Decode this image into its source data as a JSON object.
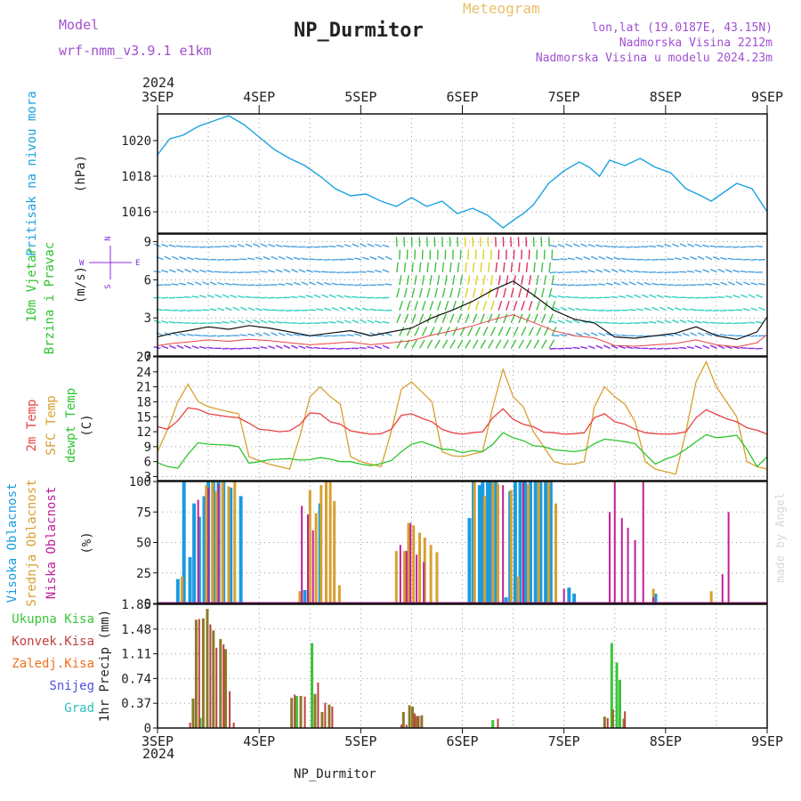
{
  "header": {
    "model_label": "Model",
    "model_name": "wrf-nmm_v3.9.1  e1km",
    "station": "NP_Durmitor",
    "product": "Meteogram",
    "coords": "lon,lat (19.0187E, 43.15N)",
    "elevation": "Nadmorska Visina 2212m",
    "model_elevation": "Nadmorska Visina u modelu 2024.23m",
    "year_top": "2024",
    "year_bottom": "2024",
    "footer_station": "NP_Durmitor",
    "watermark": "made by Angel"
  },
  "colors": {
    "pressure": "#1aa3e0",
    "t2m": "#e84343",
    "sfc": "#d8a030",
    "dewpt": "#2ec52e",
    "high_cloud": "#1a9be0",
    "mid_cloud": "#d8a030",
    "low_cloud": "#c0209a",
    "total_precip": "#3cc43c",
    "conv_precip": "#c04040",
    "strat_precip": "#8a7a2a",
    "snow": "#5050e0",
    "hail": "#30c0c0",
    "wind_calm": "#8a2be2",
    "wind_low": "#4aa0e0",
    "wind_mid": "#30d0c0",
    "wind_high": "#40c040",
    "wind_strong": "#e0d020",
    "wind_max": "#e03060"
  },
  "chart_data": [
    {
      "type": "line",
      "panel": "pressure",
      "ylabel": "Pritisak na nivou mora",
      "unit": "(hPa)",
      "yticks": [
        1016,
        1018,
        1020
      ],
      "ylim": [
        1014.8,
        1021.5
      ],
      "grid": true,
      "x_tick_labels": [
        "3SEP",
        "4SEP",
        "5SEP",
        "6SEP",
        "7SEP",
        "8SEP",
        "9SEP"
      ],
      "x_days": [
        0,
        6
      ],
      "x": [
        0,
        0.12,
        0.25,
        0.4,
        0.55,
        0.7,
        0.85,
        1.0,
        1.15,
        1.3,
        1.45,
        1.6,
        1.75,
        1.9,
        2.05,
        2.2,
        2.35,
        2.5,
        2.65,
        2.8,
        2.95,
        3.1,
        3.25,
        3.4,
        3.52,
        3.6,
        3.7,
        3.85,
        4.0,
        4.15,
        4.25,
        4.35,
        4.45,
        4.6,
        4.75,
        4.9,
        5.05,
        5.2,
        5.35,
        5.45,
        5.55,
        5.7,
        5.85,
        6.0
      ],
      "series": [
        {
          "name": "",
          "values": [
            1019.2,
            1020.1,
            1020.3,
            1020.8,
            1021.1,
            1021.4,
            1020.9,
            1020.2,
            1019.5,
            1019.0,
            1018.6,
            1018.0,
            1017.3,
            1016.9,
            1017.0,
            1016.6,
            1016.3,
            1016.8,
            1016.3,
            1016.6,
            1015.9,
            1016.2,
            1015.8,
            1015.1,
            1015.6,
            1015.9,
            1016.4,
            1017.6,
            1018.3,
            1018.8,
            1018.5,
            1018.0,
            1018.9,
            1018.6,
            1019.0,
            1018.5,
            1018.2,
            1017.3,
            1016.9,
            1016.6,
            1017.0,
            1017.6,
            1017.3,
            1016.0
          ]
        }
      ]
    },
    {
      "type": "line",
      "panel": "wind",
      "ylabel": "10m Vjetar Brzina i Pravac",
      "unit": "(m/s)",
      "direction_labels": {
        "north": "N",
        "south": "S",
        "east": "E",
        "west": "W"
      },
      "yticks": [
        0,
        3,
        6,
        9
      ],
      "ylim": [
        0,
        9.6
      ],
      "grid": true,
      "x": [
        0,
        0.15,
        0.3,
        0.5,
        0.7,
        0.9,
        1.1,
        1.3,
        1.5,
        1.7,
        1.9,
        2.1,
        2.3,
        2.5,
        2.7,
        2.9,
        3.1,
        3.3,
        3.5,
        3.7,
        3.9,
        4.1,
        4.3,
        4.5,
        4.7,
        4.9,
        5.1,
        5.3,
        5.5,
        5.7,
        5.9,
        6.0
      ],
      "series": [
        {
          "name": "",
          "values": [
            1.5,
            1.8,
            2.0,
            2.3,
            2.1,
            2.4,
            2.2,
            1.9,
            1.6,
            1.8,
            2.0,
            1.6,
            1.9,
            2.2,
            3.0,
            3.6,
            4.3,
            5.2,
            5.9,
            4.8,
            3.6,
            2.9,
            2.6,
            1.5,
            1.4,
            1.6,
            1.8,
            2.3,
            1.6,
            1.3,
            1.9,
            3.1
          ]
        }
      ]
    },
    {
      "type": "line",
      "panel": "temperature",
      "ylabel": "2m Temp / SFC Temp / dewpt Temp",
      "series_labels": [
        "2m Temp",
        "SFC Temp",
        "dewpt Temp"
      ],
      "unit": "(C)",
      "yticks": [
        3,
        6,
        9,
        12,
        15,
        18,
        21,
        24,
        27
      ],
      "ylim": [
        2.2,
        27
      ],
      "grid": true,
      "x": [
        0,
        0.1,
        0.2,
        0.3,
        0.4,
        0.5,
        0.6,
        0.7,
        0.8,
        0.9,
        1.0,
        1.1,
        1.2,
        1.3,
        1.4,
        1.5,
        1.6,
        1.7,
        1.8,
        1.9,
        2.0,
        2.1,
        2.2,
        2.3,
        2.4,
        2.5,
        2.6,
        2.7,
        2.8,
        2.9,
        3.0,
        3.1,
        3.2,
        3.3,
        3.4,
        3.5,
        3.6,
        3.7,
        3.8,
        3.9,
        4.0,
        4.1,
        4.2,
        4.3,
        4.4,
        4.5,
        4.6,
        4.7,
        4.8,
        4.9,
        5.0,
        5.1,
        5.2,
        5.3,
        5.4,
        5.5,
        5.6,
        5.7,
        5.8,
        5.9,
        6.0
      ],
      "series": [
        {
          "name": "",
          "values": [
            13.0,
            12.5,
            14.2,
            16.8,
            16.5,
            15.6,
            15.3,
            15.0,
            14.8,
            13.7,
            12.5,
            12.3,
            12.0,
            12.2,
            13.4,
            15.8,
            15.6,
            14.0,
            13.5,
            12.2,
            11.8,
            11.5,
            11.6,
            12.5,
            15.3,
            15.6,
            14.7,
            14.0,
            12.5,
            11.8,
            11.5,
            11.8,
            12.0,
            14.8,
            16.6,
            14.5,
            13.5,
            13.0,
            11.9,
            11.8,
            11.5,
            11.6,
            11.8,
            14.8,
            15.6,
            14.0,
            13.5,
            12.5,
            11.8,
            11.6,
            11.5,
            11.6,
            12.0,
            14.8,
            16.4,
            15.5,
            14.6,
            14.0,
            12.8,
            12.3,
            11.5
          ]
        },
        {
          "name": "",
          "values": [
            8.0,
            12.5,
            18.0,
            21.5,
            18.0,
            17.0,
            16.5,
            16.0,
            15.6,
            7.0,
            6.2,
            5.5,
            5.0,
            4.5,
            11.0,
            19.0,
            21.0,
            19.0,
            17.5,
            7.0,
            6.0,
            5.5,
            5.0,
            12.0,
            20.5,
            22.0,
            20.0,
            18.0,
            8.0,
            7.2,
            7.0,
            7.5,
            8.0,
            17.0,
            24.5,
            19.0,
            17.0,
            12.0,
            9.0,
            6.0,
            5.5,
            5.5,
            6.0,
            17.0,
            21.0,
            19.0,
            17.5,
            14.0,
            6.0,
            4.5,
            4.0,
            3.5,
            12.0,
            22.0,
            26.0,
            21.0,
            18.0,
            15.0,
            6.0,
            5.0,
            4.5
          ]
        },
        {
          "name": "",
          "values": [
            5.8,
            5.0,
            4.7,
            7.5,
            9.8,
            9.5,
            9.4,
            9.3,
            9.0,
            5.7,
            6.0,
            6.4,
            6.5,
            6.6,
            6.3,
            6.4,
            6.8,
            6.5,
            6.0,
            6.0,
            5.5,
            5.2,
            5.6,
            6.2,
            8.0,
            9.5,
            10.0,
            9.3,
            8.5,
            8.4,
            7.8,
            8.2,
            8.0,
            9.5,
            11.8,
            10.8,
            10.2,
            9.2,
            9.0,
            8.4,
            8.2,
            8.0,
            8.3,
            9.6,
            10.5,
            10.3,
            10.0,
            9.6,
            7.5,
            5.5,
            6.5,
            7.2,
            8.5,
            10.0,
            11.4,
            10.8,
            11.0,
            11.3,
            8.5,
            5.0,
            7.0
          ]
        }
      ]
    },
    {
      "type": "bar",
      "panel": "clouds",
      "ylabel": "Visoka Oblacnost / Srednja Oblacnost / Niska Oblacnost",
      "series_labels": [
        "Visoka Oblacnost",
        "Srednja Oblacnost",
        "Niska Oblacnost"
      ],
      "unit": "(%)",
      "yticks": [
        0,
        25,
        50,
        75,
        100
      ],
      "ylim": [
        0,
        100
      ],
      "grid": true,
      "series": [
        {
          "name": "",
          "x": [
            0.2,
            0.26,
            0.32,
            0.36,
            0.41,
            0.46,
            0.5,
            0.55,
            0.6,
            0.65,
            0.72,
            0.82,
            1.45,
            1.6,
            3.07,
            3.11,
            3.17,
            3.2,
            3.25,
            3.28,
            3.33,
            3.43,
            3.47,
            3.52,
            3.57,
            3.62,
            3.67,
            3.72,
            3.77,
            3.82,
            3.87,
            4.05,
            4.1,
            4.9
          ],
          "values": [
            20,
            100,
            38,
            82,
            71,
            88,
            100,
            100,
            100,
            100,
            95,
            88,
            11,
            82,
            70,
            100,
            97,
            100,
            100,
            100,
            100,
            5,
            92,
            100,
            100,
            100,
            100,
            100,
            100,
            100,
            100,
            13,
            8,
            8
          ]
        },
        {
          "name": "",
          "x": [
            0.24,
            0.48,
            0.54,
            0.58,
            0.64,
            0.7,
            0.76,
            1.4,
            1.5,
            1.56,
            1.61,
            1.66,
            1.7,
            1.74,
            1.79,
            2.35,
            2.43,
            2.47,
            2.52,
            2.58,
            2.63,
            2.69,
            2.75,
            3.12,
            3.22,
            3.3,
            3.35,
            3.48,
            3.55,
            3.65,
            3.75,
            3.85,
            3.92,
            4.88,
            5.45
          ],
          "values": [
            22,
            97,
            99,
            92,
            100,
            96,
            100,
            10,
            93,
            74,
            97,
            100,
            100,
            84,
            15,
            43,
            43,
            66,
            64,
            58,
            54,
            48,
            42,
            100,
            88,
            100,
            98,
            93,
            22,
            98,
            100,
            100,
            82,
            12,
            10
          ]
        },
        {
          "name": "",
          "x": [
            0.4,
            0.5,
            0.6,
            1.42,
            1.48,
            1.53,
            2.39,
            2.45,
            2.49,
            2.55,
            2.62,
            3.4,
            3.6,
            4.0,
            4.45,
            4.5,
            4.57,
            4.63,
            4.7,
            4.78,
            4.88,
            5.56,
            5.62
          ],
          "values": [
            85,
            95,
            98,
            80,
            73,
            60,
            48,
            43,
            66,
            40,
            34,
            97,
            100,
            12,
            75,
            100,
            70,
            62,
            52,
            100,
            5,
            24,
            75
          ]
        }
      ]
    },
    {
      "type": "bar",
      "panel": "precipitation",
      "ylabel": "1hr Precip (mm)",
      "series_labels": [
        "Ukupna Kisa",
        "Konvek.Kisa",
        "Zaledj.Kisa",
        "Snijeg",
        "Grad"
      ],
      "yticks": [
        0,
        0.37,
        0.74,
        1.11,
        1.48,
        1.85
      ],
      "ylim": [
        0,
        1.85
      ],
      "grid": true,
      "series": [
        {
          "name": "",
          "x": [
            0.42,
            1.37,
            1.52,
            3.3,
            4.47,
            4.52,
            4.55
          ],
          "values": [
            0.15,
            0.48,
            1.27,
            0.12,
            1.27,
            0.98,
            0.72
          ]
        },
        {
          "name": "",
          "x": [
            0.35,
            0.38,
            0.45,
            0.49,
            0.55,
            0.62,
            0.67,
            1.32,
            1.41,
            1.55,
            1.62,
            1.69,
            2.42,
            2.48,
            2.51,
            2.55,
            2.6,
            4.4,
            4.48,
            4.59
          ],
          "values": [
            0.44,
            1.62,
            1.64,
            1.78,
            1.46,
            1.33,
            1.18,
            0.45,
            0.48,
            0.51,
            0.24,
            0.35,
            0.24,
            0.34,
            0.32,
            0.18,
            0.19,
            0.17,
            0.28,
            0.14
          ]
        },
        {
          "name": "",
          "x": [
            0.32,
            0.41,
            0.52,
            0.58,
            0.65,
            0.71,
            0.75,
            1.35,
            1.45,
            1.58,
            1.65,
            1.72,
            2.4,
            2.45,
            2.53,
            2.57,
            3.35,
            4.43,
            4.6
          ],
          "values": [
            0.08,
            1.63,
            1.55,
            1.2,
            1.25,
            0.55,
            0.08,
            0.5,
            0.47,
            0.68,
            0.38,
            0.32,
            0.05,
            0.05,
            0.22,
            0.18,
            0.14,
            0.15,
            0.25
          ]
        },
        {
          "name": "",
          "x": [],
          "values": []
        },
        {
          "name": "",
          "x": [],
          "values": []
        }
      ]
    }
  ]
}
